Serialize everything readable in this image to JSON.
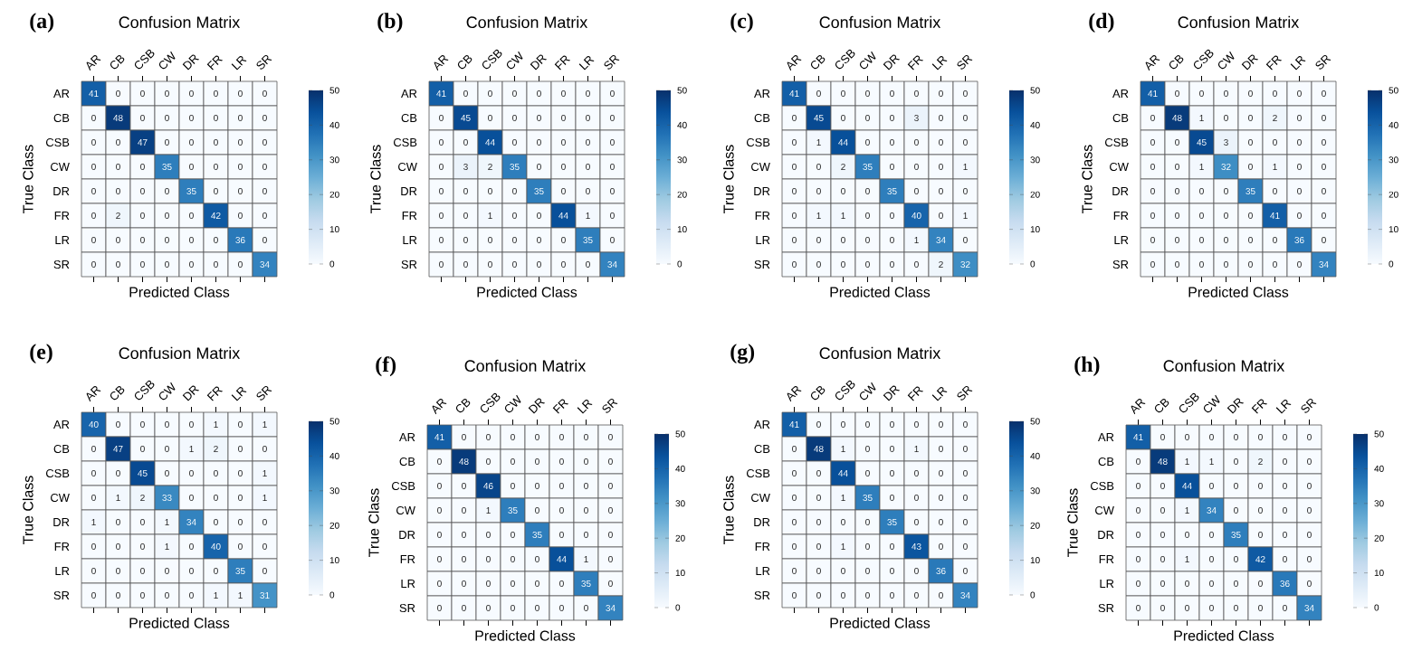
{
  "chart_data": [
    {
      "type": "heatmap",
      "title": "Confusion Matrix",
      "xlabel": "Predicted Class",
      "ylabel": "True Class",
      "annotations": [
        "(a)"
      ],
      "categories": [
        "AR",
        "CB",
        "CSB",
        "CW",
        "DR",
        "FR",
        "LR",
        "SR"
      ],
      "y_categories": [
        "AR",
        "CB",
        "CSB",
        "CW",
        "DR",
        "FR",
        "LR",
        "SR"
      ],
      "cells": [
        [
          41,
          0,
          0,
          0,
          0,
          0,
          0,
          0
        ],
        [
          0,
          48,
          0,
          0,
          0,
          0,
          0,
          0
        ],
        [
          0,
          0,
          47,
          0,
          0,
          0,
          0,
          0
        ],
        [
          0,
          0,
          0,
          35,
          0,
          0,
          0,
          0
        ],
        [
          0,
          0,
          0,
          0,
          35,
          0,
          0,
          0
        ],
        [
          0,
          2,
          0,
          0,
          0,
          42,
          0,
          0
        ],
        [
          0,
          0,
          0,
          0,
          0,
          0,
          36,
          0
        ],
        [
          0,
          0,
          0,
          0,
          0,
          0,
          0,
          34
        ]
      ],
      "clim": [
        0,
        50
      ],
      "cticks": [
        0,
        10,
        20,
        30,
        40,
        50
      ],
      "data_labels": true
    },
    {
      "type": "heatmap",
      "title": "Confusion Matrix",
      "xlabel": "Predicted Class",
      "ylabel": "True Class",
      "annotations": [
        "(b)"
      ],
      "categories": [
        "AR",
        "CB",
        "CSB",
        "CW",
        "DR",
        "FR",
        "LR",
        "SR"
      ],
      "y_categories": [
        "AR",
        "CB",
        "CSB",
        "CW",
        "DR",
        "FR",
        "LR",
        "SR"
      ],
      "cells": [
        [
          41,
          0,
          0,
          0,
          0,
          0,
          0,
          0
        ],
        [
          0,
          45,
          0,
          0,
          0,
          0,
          0,
          0
        ],
        [
          0,
          0,
          44,
          0,
          0,
          0,
          0,
          0
        ],
        [
          0,
          3,
          2,
          35,
          0,
          0,
          0,
          0
        ],
        [
          0,
          0,
          0,
          0,
          35,
          0,
          0,
          0
        ],
        [
          0,
          0,
          1,
          0,
          0,
          44,
          1,
          0
        ],
        [
          0,
          0,
          0,
          0,
          0,
          0,
          35,
          0
        ],
        [
          0,
          0,
          0,
          0,
          0,
          0,
          0,
          34
        ]
      ],
      "clim": [
        0,
        50
      ],
      "cticks": [
        0,
        10,
        20,
        30,
        40,
        50
      ],
      "data_labels": true
    },
    {
      "type": "heatmap",
      "title": "Confusion Matrix",
      "xlabel": "Predicted Class",
      "ylabel": "True Class",
      "annotations": [
        "(c)"
      ],
      "categories": [
        "AR",
        "CB",
        "CSB",
        "CW",
        "DR",
        "FR",
        "LR",
        "SR"
      ],
      "y_categories": [
        "AR",
        "CB",
        "CSB",
        "CW",
        "DR",
        "FR",
        "LR",
        "SR"
      ],
      "cells": [
        [
          41,
          0,
          0,
          0,
          0,
          0,
          0,
          0
        ],
        [
          0,
          45,
          0,
          0,
          0,
          3,
          0,
          0
        ],
        [
          0,
          1,
          44,
          0,
          0,
          0,
          0,
          0
        ],
        [
          0,
          0,
          2,
          35,
          0,
          0,
          0,
          1
        ],
        [
          0,
          0,
          0,
          0,
          35,
          0,
          0,
          0
        ],
        [
          0,
          1,
          1,
          0,
          0,
          40,
          0,
          1
        ],
        [
          0,
          0,
          0,
          0,
          0,
          1,
          34,
          0
        ],
        [
          0,
          0,
          0,
          0,
          0,
          0,
          2,
          32
        ]
      ],
      "clim": [
        0,
        50
      ],
      "cticks": [
        0,
        10,
        20,
        30,
        40,
        50
      ],
      "data_labels": true
    },
    {
      "type": "heatmap",
      "title": "Confusion Matrix",
      "xlabel": "Predicted Class",
      "ylabel": "True Class",
      "annotations": [
        "(d)"
      ],
      "categories": [
        "AR",
        "CB",
        "CSB",
        "CW",
        "DR",
        "FR",
        "LR",
        "SR"
      ],
      "y_categories": [
        "AR",
        "CB",
        "CSB",
        "CW",
        "DR",
        "FR",
        "LR",
        "SR"
      ],
      "cells": [
        [
          41,
          0,
          0,
          0,
          0,
          0,
          0,
          0
        ],
        [
          0,
          48,
          1,
          0,
          0,
          2,
          0,
          0
        ],
        [
          0,
          0,
          45,
          3,
          0,
          0,
          0,
          0
        ],
        [
          0,
          0,
          1,
          32,
          0,
          1,
          0,
          0
        ],
        [
          0,
          0,
          0,
          0,
          35,
          0,
          0,
          0
        ],
        [
          0,
          0,
          0,
          0,
          0,
          41,
          0,
          0
        ],
        [
          0,
          0,
          0,
          0,
          0,
          0,
          36,
          0
        ],
        [
          0,
          0,
          0,
          0,
          0,
          0,
          0,
          34
        ]
      ],
      "clim": [
        0,
        50
      ],
      "cticks": [
        0,
        10,
        20,
        30,
        40,
        50
      ],
      "data_labels": true
    },
    {
      "type": "heatmap",
      "title": "Confusion Matrix",
      "xlabel": "Predicted Class",
      "ylabel": "True Class",
      "annotations": [
        "(e)"
      ],
      "categories": [
        "AR",
        "CB",
        "CSB",
        "CW",
        "DR",
        "FR",
        "LR",
        "SR"
      ],
      "y_categories": [
        "AR",
        "CB",
        "CSB",
        "CW",
        "DR",
        "FR",
        "LR",
        "SR"
      ],
      "cells": [
        [
          40,
          0,
          0,
          0,
          0,
          1,
          0,
          1
        ],
        [
          0,
          47,
          0,
          0,
          1,
          2,
          0,
          0
        ],
        [
          0,
          0,
          45,
          0,
          0,
          0,
          0,
          1
        ],
        [
          0,
          1,
          2,
          33,
          0,
          0,
          0,
          1
        ],
        [
          1,
          0,
          0,
          1,
          34,
          0,
          0,
          0
        ],
        [
          0,
          0,
          0,
          1,
          0,
          40,
          0,
          0
        ],
        [
          0,
          0,
          0,
          0,
          0,
          0,
          35,
          0
        ],
        [
          0,
          0,
          0,
          0,
          0,
          1,
          1,
          31
        ]
      ],
      "clim": [
        0,
        50
      ],
      "cticks": [
        0,
        10,
        20,
        30,
        40,
        50
      ],
      "data_labels": true
    },
    {
      "type": "heatmap",
      "title": "Confusion Matrix",
      "xlabel": "Predicted Class",
      "ylabel": "True Class",
      "annotations": [
        "(f)"
      ],
      "categories": [
        "AR",
        "CB",
        "CSB",
        "CW",
        "DR",
        "FR",
        "LR",
        "SR"
      ],
      "y_categories": [
        "AR",
        "CB",
        "CSB",
        "CW",
        "DR",
        "FR",
        "LR",
        "SR"
      ],
      "cells": [
        [
          41,
          0,
          0,
          0,
          0,
          0,
          0,
          0
        ],
        [
          0,
          48,
          0,
          0,
          0,
          0,
          0,
          0
        ],
        [
          0,
          0,
          46,
          0,
          0,
          0,
          0,
          0
        ],
        [
          0,
          0,
          1,
          35,
          0,
          0,
          0,
          0
        ],
        [
          0,
          0,
          0,
          0,
          35,
          0,
          0,
          0
        ],
        [
          0,
          0,
          0,
          0,
          0,
          44,
          1,
          0
        ],
        [
          0,
          0,
          0,
          0,
          0,
          0,
          35,
          0
        ],
        [
          0,
          0,
          0,
          0,
          0,
          0,
          0,
          34
        ]
      ],
      "clim": [
        0,
        50
      ],
      "cticks": [
        0,
        10,
        20,
        30,
        40,
        50
      ],
      "data_labels": true
    },
    {
      "type": "heatmap",
      "title": "Confusion Matrix",
      "xlabel": "Predicted Class",
      "ylabel": "True Class",
      "annotations": [
        "(g)"
      ],
      "categories": [
        "AR",
        "CB",
        "CSB",
        "CW",
        "DR",
        "FR",
        "LR",
        "SR"
      ],
      "y_categories": [
        "AR",
        "CB",
        "CSB",
        "CW",
        "DR",
        "FR",
        "LR",
        "SR"
      ],
      "cells": [
        [
          41,
          0,
          0,
          0,
          0,
          0,
          0,
          0
        ],
        [
          0,
          48,
          1,
          0,
          0,
          1,
          0,
          0
        ],
        [
          0,
          0,
          44,
          0,
          0,
          0,
          0,
          0
        ],
        [
          0,
          0,
          1,
          35,
          0,
          0,
          0,
          0
        ],
        [
          0,
          0,
          0,
          0,
          35,
          0,
          0,
          0
        ],
        [
          0,
          0,
          1,
          0,
          0,
          43,
          0,
          0
        ],
        [
          0,
          0,
          0,
          0,
          0,
          0,
          36,
          0
        ],
        [
          0,
          0,
          0,
          0,
          0,
          0,
          0,
          34
        ]
      ],
      "clim": [
        0,
        50
      ],
      "cticks": [
        0,
        10,
        20,
        30,
        40,
        50
      ],
      "data_labels": true
    },
    {
      "type": "heatmap",
      "title": "Confusion Matrix",
      "xlabel": "Predicted Class",
      "ylabel": "True Class",
      "annotations": [
        "(h)"
      ],
      "categories": [
        "AR",
        "CB",
        "CSB",
        "CW",
        "DR",
        "FR",
        "LR",
        "SR"
      ],
      "y_categories": [
        "AR",
        "CB",
        "CSB",
        "CW",
        "DR",
        "FR",
        "LR",
        "SR"
      ],
      "cells": [
        [
          41,
          0,
          0,
          0,
          0,
          0,
          0,
          0
        ],
        [
          0,
          48,
          1,
          1,
          0,
          2,
          0,
          0
        ],
        [
          0,
          0,
          44,
          0,
          0,
          0,
          0,
          0
        ],
        [
          0,
          0,
          1,
          34,
          0,
          0,
          0,
          0
        ],
        [
          0,
          0,
          0,
          0,
          35,
          0,
          0,
          0
        ],
        [
          0,
          0,
          1,
          0,
          0,
          42,
          0,
          0
        ],
        [
          0,
          0,
          0,
          0,
          0,
          0,
          36,
          0
        ],
        [
          0,
          0,
          0,
          0,
          0,
          0,
          0,
          34
        ]
      ],
      "clim": [
        0,
        50
      ],
      "cticks": [
        0,
        10,
        20,
        30,
        40,
        50
      ],
      "data_labels": true
    }
  ]
}
